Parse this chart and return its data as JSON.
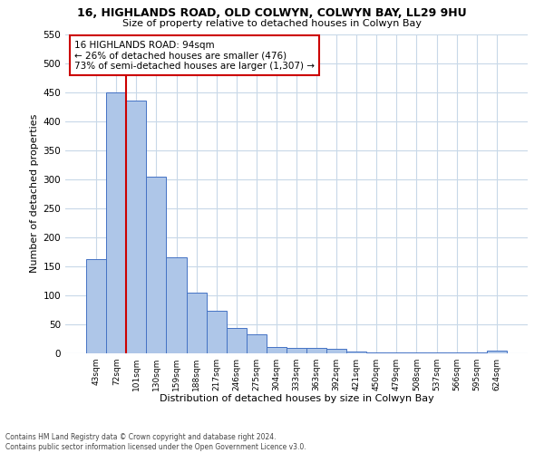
{
  "title1": "16, HIGHLANDS ROAD, OLD COLWYN, COLWYN BAY, LL29 9HU",
  "title2": "Size of property relative to detached houses in Colwyn Bay",
  "xlabel": "Distribution of detached houses by size in Colwyn Bay",
  "ylabel": "Number of detached properties",
  "bin_labels": [
    "43sqm",
    "72sqm",
    "101sqm",
    "130sqm",
    "159sqm",
    "188sqm",
    "217sqm",
    "246sqm",
    "275sqm",
    "304sqm",
    "333sqm",
    "363sqm",
    "392sqm",
    "421sqm",
    "450sqm",
    "479sqm",
    "508sqm",
    "537sqm",
    "566sqm",
    "595sqm",
    "624sqm"
  ],
  "bar_heights": [
    163,
    450,
    435,
    305,
    165,
    105,
    73,
    43,
    33,
    11,
    10,
    9,
    8,
    3,
    2,
    2,
    1,
    1,
    1,
    1,
    5
  ],
  "bar_color": "#aec6e8",
  "bar_edge_color": "#4472c4",
  "vline_color": "#cc0000",
  "annotation_text": "16 HIGHLANDS ROAD: 94sqm\n← 26% of detached houses are smaller (476)\n73% of semi-detached houses are larger (1,307) →",
  "annotation_box_color": "#ffffff",
  "annotation_box_edge": "#cc0000",
  "ylim": [
    0,
    550
  ],
  "yticks": [
    0,
    50,
    100,
    150,
    200,
    250,
    300,
    350,
    400,
    450,
    500,
    550
  ],
  "footer1": "Contains HM Land Registry data © Crown copyright and database right 2024.",
  "footer2": "Contains public sector information licensed under the Open Government Licence v3.0.",
  "bg_color": "#ffffff",
  "grid_color": "#c8d8e8"
}
